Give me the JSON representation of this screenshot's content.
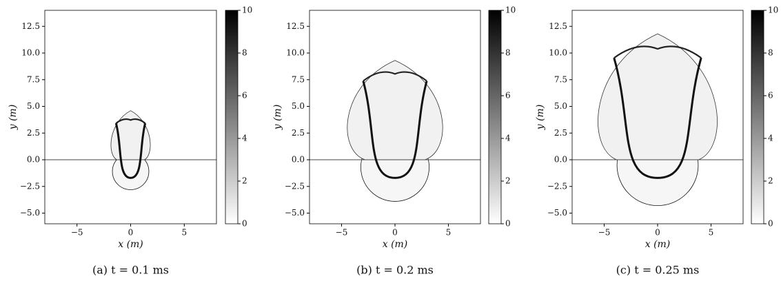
{
  "chart_data": [
    {
      "type": "image",
      "caption": "(a) t = 0.1 ms",
      "xlabel": "x (m)",
      "ylabel": "y (m)",
      "xlim": [
        -8,
        8
      ],
      "ylim": [
        -6,
        14
      ],
      "xticks": [
        {
          "value": -5,
          "label": "−5"
        },
        0,
        5
      ],
      "yticks": [
        {
          "value": -5,
          "label": "−5.0"
        },
        {
          "value": -2.5,
          "label": "−2.5"
        },
        {
          "value": 0,
          "label": "0.0"
        },
        {
          "value": 2.5,
          "label": "2.5"
        },
        {
          "value": 5,
          "label": "5.0"
        },
        {
          "value": 7.5,
          "label": "7.5"
        },
        {
          "value": 10,
          "label": "10.0"
        },
        {
          "value": 12.5,
          "label": "12.5"
        }
      ],
      "colorbar_lim": [
        0,
        10
      ],
      "colorbar_ticks": [
        0,
        2,
        4,
        6,
        8,
        10
      ]
    },
    {
      "type": "image",
      "caption": "(b) t = 0.2 ms",
      "xlabel": "x (m)",
      "ylabel": "y (m)",
      "xlim": [
        -8,
        8
      ],
      "ylim": [
        -6,
        14
      ],
      "xticks": [
        {
          "value": -5,
          "label": "−5"
        },
        0,
        5
      ],
      "yticks": [
        {
          "value": -5,
          "label": "−5.0"
        },
        {
          "value": -2.5,
          "label": "−2.5"
        },
        {
          "value": 0,
          "label": "0.0"
        },
        {
          "value": 2.5,
          "label": "2.5"
        },
        {
          "value": 5,
          "label": "5.0"
        },
        {
          "value": 7.5,
          "label": "7.5"
        },
        {
          "value": 10,
          "label": "10.0"
        },
        {
          "value": 12.5,
          "label": "12.5"
        }
      ],
      "colorbar_lim": [
        0,
        10
      ],
      "colorbar_ticks": [
        0,
        2,
        4,
        6,
        8,
        10
      ]
    },
    {
      "type": "image",
      "caption": "(c) t = 0.25 ms",
      "xlabel": "x (m)",
      "ylabel": "y (m)",
      "xlim": [
        -8,
        8
      ],
      "ylim": [
        -6,
        14
      ],
      "xticks": [
        {
          "value": -5,
          "label": "−5"
        },
        0,
        5
      ],
      "yticks": [
        {
          "value": -5,
          "label": "−5.0"
        },
        {
          "value": -2.5,
          "label": "−2.5"
        },
        {
          "value": 0,
          "label": "0.0"
        },
        {
          "value": 2.5,
          "label": "2.5"
        },
        {
          "value": 5,
          "label": "5.0"
        },
        {
          "value": 7.5,
          "label": "7.5"
        },
        {
          "value": 10,
          "label": "10.0"
        },
        {
          "value": 12.5,
          "label": "12.5"
        }
      ],
      "colorbar_lim": [
        0,
        10
      ],
      "colorbar_ticks": [
        0,
        2,
        4,
        6,
        8,
        10
      ]
    }
  ]
}
